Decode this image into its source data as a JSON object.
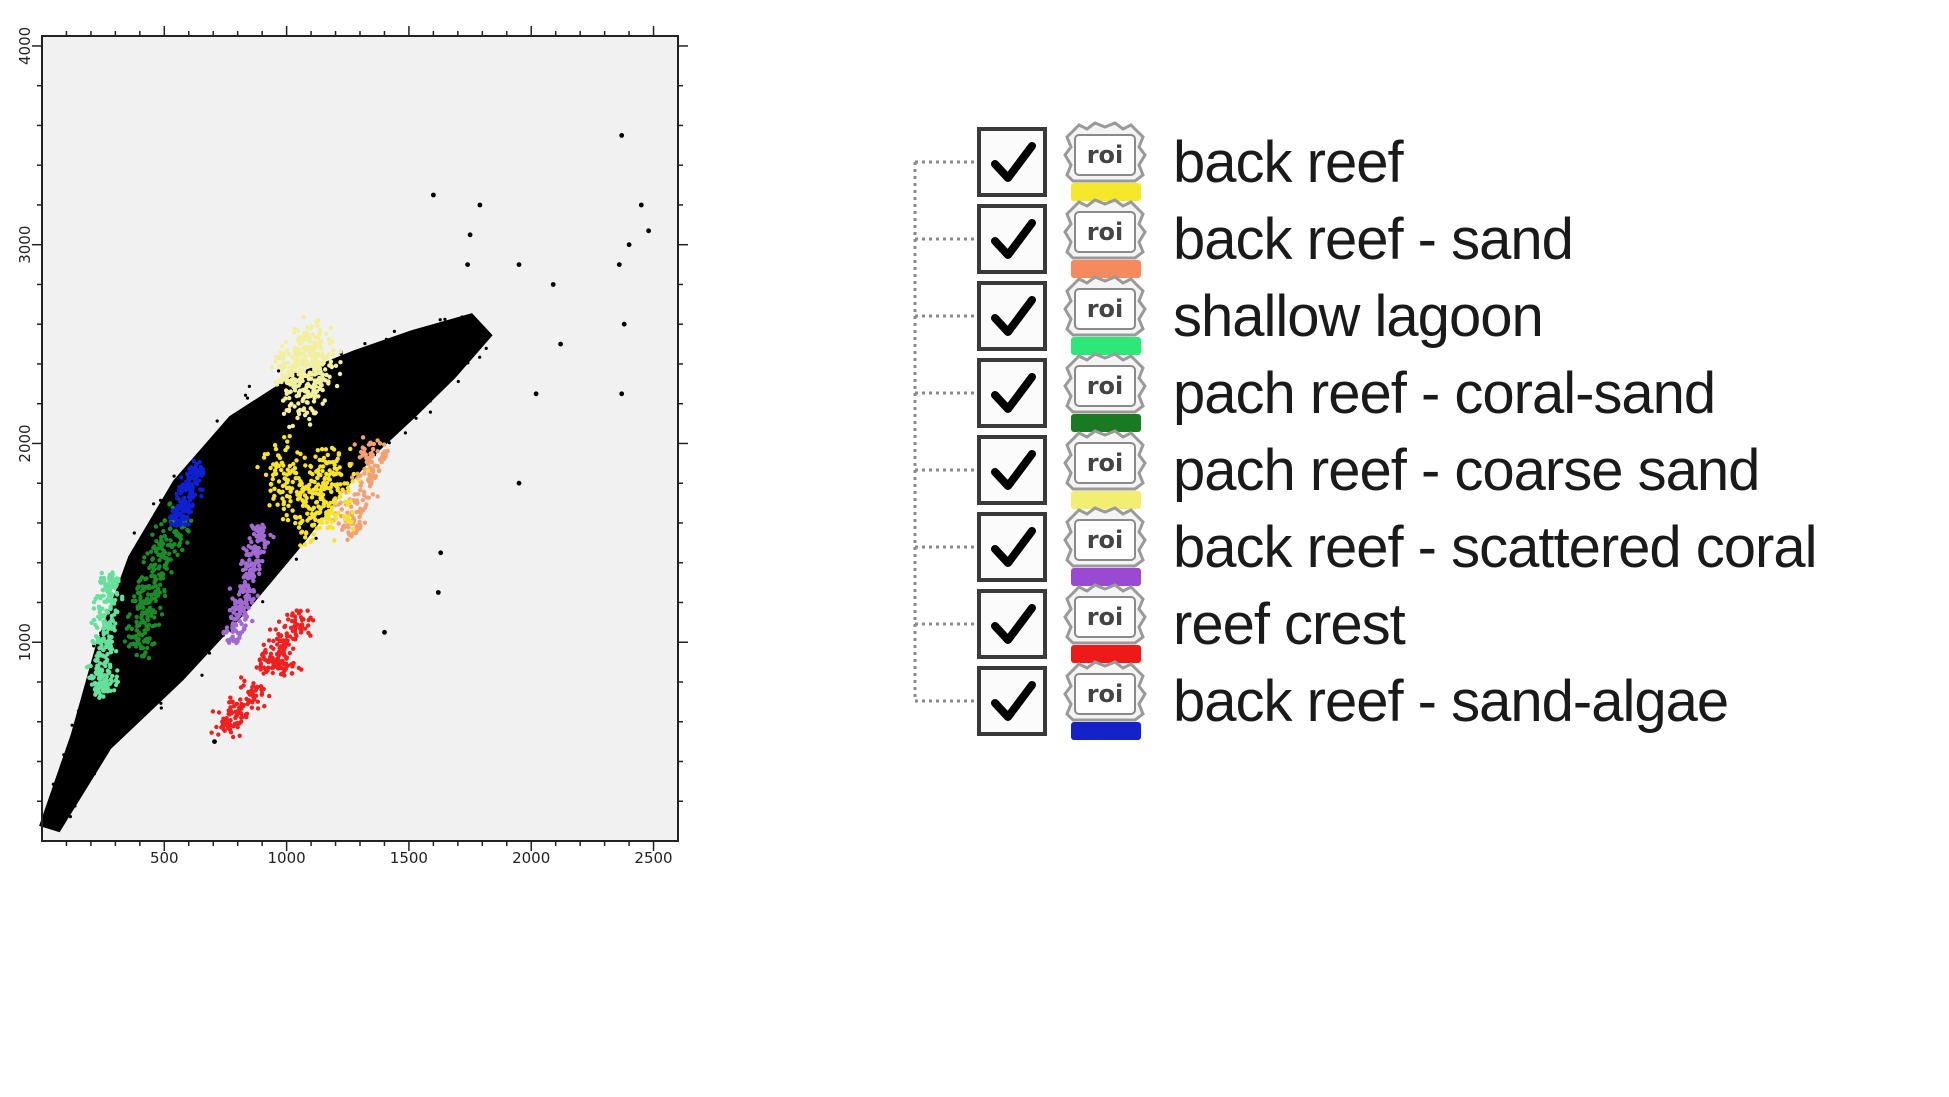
{
  "chart_data": {
    "type": "scatter",
    "title": "",
    "xlabel": "",
    "ylabel": "",
    "xlim": [
      0,
      2600
    ],
    "ylim": [
      0,
      4050
    ],
    "x_ticks": [
      500,
      1000,
      1500,
      2000,
      2500
    ],
    "y_ticks": [
      1000,
      2000,
      3000,
      4000
    ],
    "x_tick_labels": [
      "500",
      "1000",
      "1500",
      "2000",
      "2500"
    ],
    "y_tick_labels": [
      "1000",
      "2000",
      "3000",
      "4000"
    ],
    "grid": false,
    "legend_position": "right",
    "background": "#f1f1f1",
    "cloud": {
      "color": "#000000",
      "spine": [
        [
          30,
          60
        ],
        [
          200,
          500
        ],
        [
          400,
          900
        ],
        [
          600,
          1300
        ],
        [
          800,
          1650
        ],
        [
          1000,
          1950
        ],
        [
          1200,
          2150
        ],
        [
          1400,
          2300
        ],
        [
          1600,
          2450
        ],
        [
          1800,
          2600
        ]
      ],
      "width": [
        90,
        180,
        400,
        560,
        620,
        600,
        520,
        420,
        300,
        140
      ],
      "outliers": [
        [
          1600,
          3250
        ],
        [
          1790,
          3200
        ],
        [
          1750,
          3050
        ],
        [
          1950,
          2900
        ],
        [
          1740,
          2900
        ],
        [
          2090,
          2800
        ],
        [
          2370,
          3550
        ],
        [
          2450,
          3200
        ],
        [
          2480,
          3070
        ],
        [
          2400,
          3000
        ],
        [
          2360,
          2900
        ],
        [
          2380,
          2600
        ],
        [
          2370,
          2250
        ],
        [
          2120,
          2500
        ],
        [
          2020,
          2250
        ],
        [
          1950,
          1800
        ],
        [
          1630,
          1450
        ],
        [
          1620,
          1250
        ],
        [
          1400,
          1050
        ],
        [
          705,
          500
        ]
      ]
    },
    "series": [
      {
        "name": "back reef",
        "color": "#f2efa0",
        "points": [
          [
            1080,
            2350
          ],
          [
            1040,
            2450
          ],
          [
            1120,
            2450
          ],
          [
            1030,
            2300
          ],
          [
            1110,
            2300
          ],
          [
            1070,
            2200
          ],
          [
            1090,
            2550
          ],
          [
            1000,
            2380
          ],
          [
            1140,
            2380
          ]
        ],
        "spread": 45
      },
      {
        "name": "back reef - sand",
        "color": "#f2a272",
        "points": [
          [
            1290,
            1700
          ],
          [
            1330,
            1850
          ],
          [
            1360,
            1950
          ],
          [
            1260,
            1600
          ]
        ],
        "spread": 40
      },
      {
        "name": "shallow lagoon",
        "color": "#66e09a",
        "points": [
          [
            270,
            1200
          ],
          [
            260,
            1100
          ],
          [
            250,
            1000
          ],
          [
            240,
            900
          ],
          [
            270,
            800
          ],
          [
            280,
            1300
          ],
          [
            230,
            780
          ]
        ],
        "spread": 30
      },
      {
        "name": "pach reef - coral-sand",
        "color": "#1d8a2a",
        "points": [
          [
            510,
            1500
          ],
          [
            480,
            1400
          ],
          [
            460,
            1300
          ],
          [
            430,
            1200
          ],
          [
            560,
            1600
          ],
          [
            420,
            1100
          ],
          [
            400,
            1000
          ]
        ],
        "spread": 40
      },
      {
        "name": "pach reef - coarse sand",
        "color": "#f5e330",
        "points": [
          [
            1150,
            1750
          ],
          [
            1050,
            1700
          ],
          [
            1220,
            1850
          ],
          [
            1000,
            1800
          ],
          [
            1100,
            1600
          ],
          [
            1200,
            1650
          ],
          [
            980,
            1900
          ],
          [
            1150,
            1880
          ]
        ],
        "spread": 55
      },
      {
        "name": "back reef - scattered coral",
        "color": "#a06ad0",
        "points": [
          [
            870,
            1450
          ],
          [
            850,
            1350
          ],
          [
            830,
            1250
          ],
          [
            810,
            1150
          ],
          [
            890,
            1550
          ],
          [
            790,
            1050
          ]
        ],
        "spread": 28
      },
      {
        "name": "reef crest",
        "color": "#ee2020",
        "points": [
          [
            870,
            750
          ],
          [
            920,
            900
          ],
          [
            980,
            1000
          ],
          [
            1050,
            1100
          ],
          [
            800,
            650
          ],
          [
            760,
            600
          ],
          [
            1000,
            900
          ]
        ],
        "spread": 35
      },
      {
        "name": "back reef - sand-algae",
        "color": "#1020d0",
        "points": [
          [
            580,
            1700
          ],
          [
            610,
            1780
          ],
          [
            630,
            1850
          ],
          [
            560,
            1640
          ]
        ],
        "spread": 25
      }
    ]
  },
  "legend": {
    "icon_text": "roi",
    "items": [
      {
        "label": "back reef",
        "checked": true,
        "color": "#f5e82a",
        "icon": "roi-icon"
      },
      {
        "label": "back reef - sand",
        "checked": true,
        "color": "#f48a5e",
        "icon": "roi-icon"
      },
      {
        "label": "shallow lagoon",
        "checked": true,
        "color": "#2ce878",
        "icon": "roi-icon"
      },
      {
        "label": "pach reef - coral-sand",
        "checked": true,
        "color": "#1a7a22",
        "icon": "roi-icon"
      },
      {
        "label": "pach reef - coarse sand",
        "checked": true,
        "color": "#f2ee72",
        "icon": "roi-icon"
      },
      {
        "label": "back reef - scattered coral",
        "checked": true,
        "color": "#9a4ad2",
        "icon": "roi-icon"
      },
      {
        "label": "reef crest",
        "checked": true,
        "color": "#ee1a1a",
        "icon": "roi-icon"
      },
      {
        "label": "back reef - sand-algae",
        "checked": true,
        "color": "#1422c8",
        "icon": "roi-icon"
      }
    ]
  }
}
